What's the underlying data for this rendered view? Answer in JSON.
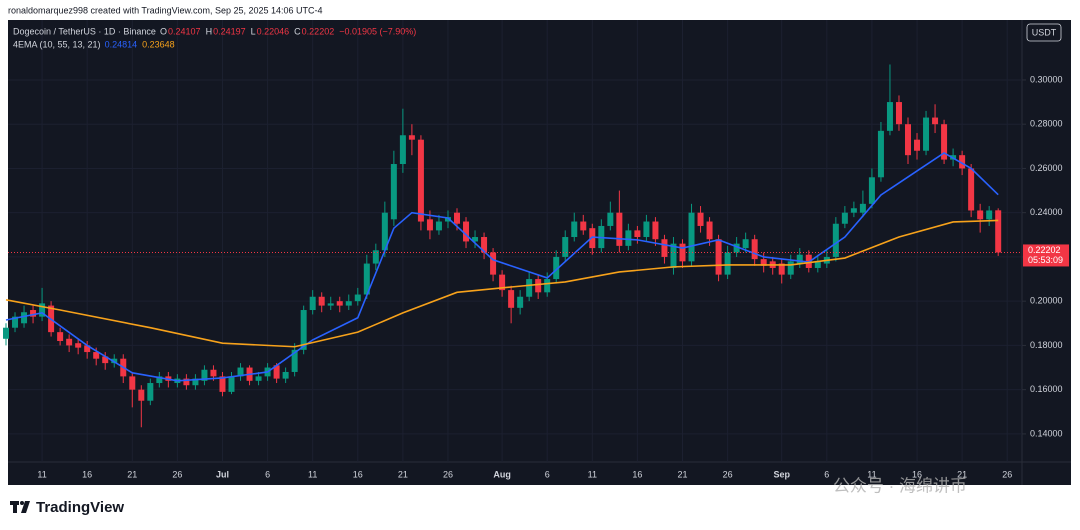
{
  "header": {
    "attribution": "ronaldomarquez998 created with TradingView.com, Sep 25, 2025 14:06 UTC-4",
    "footer_logo": "TradingView",
    "watermark": "公众号 · 海绵讲币"
  },
  "chart_data": {
    "type": "candlestick",
    "title": "Dogecoin / TetherUS · 1D · Binance",
    "currency": "USDT",
    "ohlc_labels": [
      "O",
      "H",
      "L",
      "C"
    ],
    "change": "−0.01905 (−7.90%)",
    "countdown": "05:53:09",
    "indicator": "4EMA (10, 55, 13, 21)",
    "categories": [
      null,
      null,
      null,
      null,
      "11",
      null,
      null,
      null,
      null,
      "16",
      null,
      null,
      null,
      null,
      "21",
      null,
      null,
      null,
      null,
      "26",
      null,
      null,
      null,
      null,
      "Jul",
      null,
      null,
      null,
      null,
      "6",
      null,
      null,
      null,
      null,
      "11",
      null,
      null,
      null,
      null,
      "16",
      null,
      null,
      null,
      null,
      "21",
      null,
      null,
      null,
      null,
      "26",
      null,
      null,
      null,
      null,
      null,
      "Aug",
      null,
      null,
      null,
      null,
      "6",
      null,
      null,
      null,
      null,
      "11",
      null,
      null,
      null,
      null,
      "16",
      null,
      null,
      null,
      null,
      "21",
      null,
      null,
      null,
      null,
      "26",
      null,
      null,
      null,
      null,
      null,
      "Sep",
      null,
      null,
      null,
      null,
      "6",
      null,
      null,
      null,
      null,
      "11",
      null,
      null,
      null,
      null,
      "16",
      null,
      null,
      null,
      null,
      "21",
      null,
      null,
      null,
      null,
      "26"
    ],
    "open": [
      0.183,
      0.188,
      0.19,
      0.196,
      0.193,
      0.198,
      0.186,
      0.183,
      0.181,
      0.18,
      0.177,
      0.175,
      0.172,
      0.174,
      0.166,
      0.16,
      0.155,
      0.163,
      0.166,
      0.163,
      0.165,
      0.162,
      0.164,
      0.169,
      0.166,
      0.159,
      0.166,
      0.17,
      0.164,
      0.166,
      0.171,
      0.165,
      0.168,
      0.178,
      0.196,
      0.202,
      0.198,
      0.2,
      0.198,
      0.2,
      0.203,
      0.217,
      0.223,
      0.237,
      0.262,
      0.275,
      0.273,
      0.237,
      0.232,
      0.236,
      0.24,
      0.236,
      0.227,
      0.229,
      0.222,
      0.212,
      0.205,
      0.197,
      0.202,
      0.21,
      0.204,
      0.21,
      0.22,
      0.229,
      0.236,
      0.233,
      0.224,
      0.234,
      0.24,
      0.225,
      0.232,
      0.229,
      0.236,
      0.228,
      0.215,
      0.226,
      0.218,
      0.24,
      0.236,
      0.228,
      0.212,
      0.222,
      0.224,
      0.228,
      0.219,
      0.218,
      0.217,
      0.212,
      0.217,
      0.221,
      0.215,
      0.217,
      0.22,
      0.235,
      0.24,
      0.24,
      0.244,
      0.256,
      0.277,
      0.29,
      0.28,
      0.273,
      0.268,
      0.283,
      0.28,
      0.264,
      0.266,
      0.26,
      0.241,
      0.237,
      0.24107,
      null
    ],
    "high": [
      0.19,
      0.195,
      0.198,
      0.198,
      0.206,
      0.2,
      0.188,
      0.185,
      0.183,
      0.182,
      0.179,
      0.177,
      0.176,
      0.176,
      0.168,
      0.162,
      0.165,
      0.168,
      0.168,
      0.167,
      0.167,
      0.167,
      0.171,
      0.171,
      0.168,
      0.168,
      0.172,
      0.171,
      0.168,
      0.172,
      0.172,
      0.17,
      0.181,
      0.198,
      0.205,
      0.204,
      0.202,
      0.202,
      0.203,
      0.206,
      0.221,
      0.226,
      0.245,
      0.268,
      0.287,
      0.28,
      0.275,
      0.241,
      0.239,
      0.241,
      0.242,
      0.238,
      0.232,
      0.231,
      0.224,
      0.214,
      0.207,
      0.205,
      0.213,
      0.212,
      0.213,
      0.223,
      0.232,
      0.24,
      0.239,
      0.235,
      0.237,
      0.245,
      0.25,
      0.235,
      0.234,
      0.239,
      0.238,
      0.23,
      0.229,
      0.228,
      0.244,
      0.243,
      0.238,
      0.23,
      0.225,
      0.229,
      0.231,
      0.23,
      0.222,
      0.22,
      0.219,
      0.221,
      0.224,
      0.223,
      0.221,
      0.223,
      0.238,
      0.243,
      0.245,
      0.25,
      0.26,
      0.281,
      0.307,
      0.293,
      0.283,
      0.276,
      0.286,
      0.289,
      0.282,
      0.269,
      0.268,
      0.262,
      0.244,
      0.243,
      0.24197,
      null
    ],
    "low": [
      0.18,
      0.186,
      0.188,
      0.19,
      0.191,
      0.184,
      0.18,
      0.177,
      0.176,
      0.174,
      0.171,
      0.169,
      0.17,
      0.163,
      0.152,
      0.143,
      0.153,
      0.161,
      0.161,
      0.161,
      0.16,
      0.16,
      0.162,
      0.164,
      0.157,
      0.158,
      0.164,
      0.162,
      0.162,
      0.164,
      0.163,
      0.163,
      0.166,
      0.176,
      0.194,
      0.195,
      0.196,
      0.195,
      0.196,
      0.198,
      0.201,
      0.214,
      0.22,
      0.234,
      0.258,
      0.266,
      0.232,
      0.228,
      0.23,
      0.233,
      0.232,
      0.224,
      0.224,
      0.219,
      0.209,
      0.202,
      0.19,
      0.194,
      0.2,
      0.201,
      0.202,
      0.208,
      0.218,
      0.227,
      0.23,
      0.221,
      0.222,
      0.232,
      0.222,
      0.223,
      0.226,
      0.227,
      0.225,
      0.217,
      0.212,
      0.215,
      0.216,
      0.231,
      0.225,
      0.209,
      0.21,
      0.22,
      0.222,
      0.216,
      0.213,
      0.212,
      0.208,
      0.21,
      0.215,
      0.213,
      0.213,
      0.215,
      0.218,
      0.233,
      0.238,
      0.238,
      0.242,
      0.254,
      0.275,
      0.277,
      0.262,
      0.264,
      0.266,
      0.276,
      0.262,
      0.261,
      0.257,
      0.238,
      0.231,
      0.234,
      0.22046,
      null
    ],
    "close": [
      0.188,
      0.193,
      0.195,
      0.193,
      0.199,
      0.186,
      0.182,
      0.18,
      0.179,
      0.177,
      0.174,
      0.172,
      0.174,
      0.166,
      0.16,
      0.155,
      0.163,
      0.166,
      0.164,
      0.165,
      0.162,
      0.165,
      0.169,
      0.166,
      0.159,
      0.166,
      0.17,
      0.164,
      0.166,
      0.17,
      0.165,
      0.168,
      0.178,
      0.196,
      0.202,
      0.198,
      0.199,
      0.198,
      0.2,
      0.203,
      0.217,
      0.223,
      0.24,
      0.262,
      0.275,
      0.273,
      0.236,
      0.232,
      0.236,
      0.238,
      0.235,
      0.227,
      0.229,
      0.222,
      0.212,
      0.205,
      0.197,
      0.202,
      0.21,
      0.204,
      0.21,
      0.22,
      0.229,
      0.236,
      0.232,
      0.224,
      0.234,
      0.24,
      0.225,
      0.232,
      0.229,
      0.236,
      0.228,
      0.22,
      0.226,
      0.218,
      0.24,
      0.234,
      0.228,
      0.212,
      0.222,
      0.226,
      0.228,
      0.219,
      0.216,
      0.215,
      0.212,
      0.218,
      0.221,
      0.215,
      0.218,
      0.22,
      0.235,
      0.24,
      0.242,
      0.244,
      0.256,
      0.277,
      0.29,
      0.28,
      0.266,
      0.268,
      0.283,
      0.28,
      0.264,
      0.266,
      0.26,
      0.241,
      0.237,
      0.241,
      0.22202,
      null
    ],
    "up_color": "#089981",
    "down_color": "#f23645",
    "lines": [
      {
        "color": "#2962ff",
        "x": [
          0,
          4,
          9,
          14,
          19,
          24,
          29,
          34,
          39,
          43,
          45,
          49,
          54,
          60,
          65,
          70,
          75,
          79,
          84,
          89,
          93,
          97,
          102,
          104,
          107,
          110
        ],
        "values": [
          0.1915,
          0.1947,
          0.18,
          0.1676,
          0.164,
          0.1653,
          0.168,
          0.1825,
          0.1925,
          0.233,
          0.24,
          0.2376,
          0.2187,
          0.2105,
          0.229,
          0.2277,
          0.224,
          0.2277,
          0.22,
          0.2177,
          0.229,
          0.248,
          0.2616,
          0.267,
          0.26,
          0.24814
        ]
      },
      {
        "color": "#f7a21b",
        "x": [
          0,
          6,
          16,
          24,
          32,
          39,
          44,
          50,
          56,
          62,
          68,
          74,
          80,
          87,
          93,
          99,
          105,
          110
        ],
        "values": [
          0.2006,
          0.196,
          0.188,
          0.181,
          0.1794,
          0.186,
          0.1947,
          0.204,
          0.2064,
          0.2087,
          0.2132,
          0.2155,
          0.2164,
          0.2164,
          0.2195,
          0.229,
          0.2358,
          0.23648
        ]
      }
    ],
    "ylim": [
      0.1273,
      0.3271
    ],
    "yticks": [
      {
        "value": 0.14,
        "label": "0.14000"
      },
      {
        "value": 0.16,
        "label": "0.16000"
      },
      {
        "value": 0.18,
        "label": "0.18000"
      },
      {
        "value": 0.2,
        "label": "0.20000"
      },
      {
        "value": 0.22,
        "label": "0.22000"
      },
      {
        "value": 0.24,
        "label": "0.24000"
      },
      {
        "value": 0.26,
        "label": "0.26000"
      },
      {
        "value": 0.28,
        "label": "0.28000"
      },
      {
        "value": 0.3,
        "label": "0.30000"
      }
    ],
    "grid": true
  }
}
